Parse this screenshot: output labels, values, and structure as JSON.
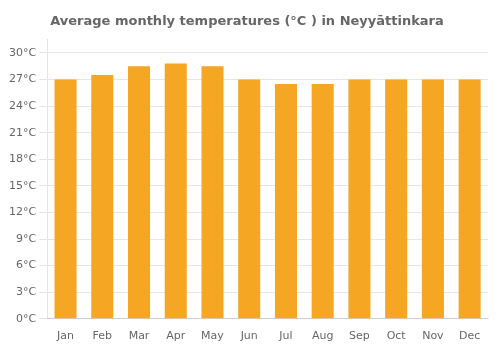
{
  "chart_data": {
    "type": "bar",
    "title": "Average monthly temperatures (°C ) in Neyyāttinkara",
    "categories": [
      "Jan",
      "Feb",
      "Mar",
      "Apr",
      "May",
      "Jun",
      "Jul",
      "Aug",
      "Sep",
      "Oct",
      "Nov",
      "Dec"
    ],
    "values": [
      27.0,
      27.5,
      28.5,
      28.8,
      28.5,
      27.0,
      26.5,
      26.5,
      27.0,
      27.0,
      27.0,
      27.0
    ],
    "color": "#F5A623",
    "ylim": [
      0,
      31.5
    ],
    "yticks": [
      {
        "value": 0,
        "label": "0°C"
      },
      {
        "value": 3,
        "label": "3°C"
      },
      {
        "value": 6,
        "label": "6°C"
      },
      {
        "value": 9,
        "label": "9°C"
      },
      {
        "value": 12,
        "label": "12°C"
      },
      {
        "value": 15,
        "label": "15°C"
      },
      {
        "value": 18,
        "label": "18°C"
      },
      {
        "value": 21,
        "label": "21°C"
      },
      {
        "value": 24,
        "label": "24°C"
      },
      {
        "value": 27,
        "label": "27°C"
      },
      {
        "value": 30,
        "label": "30°C"
      }
    ],
    "grid": true
  }
}
